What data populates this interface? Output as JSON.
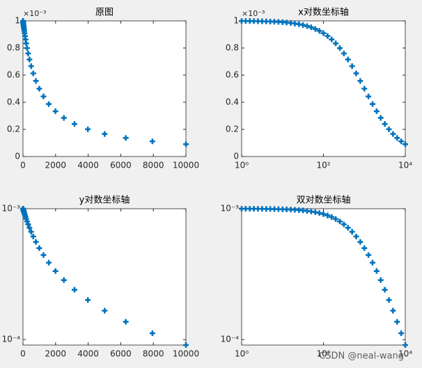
{
  "chart_data": [
    {
      "type": "scatter",
      "title": "原图",
      "exponent_label": "×10⁻³",
      "color": "#0072bd",
      "xscale": "linear",
      "yscale": "linear",
      "x": [
        1,
        1.259,
        1.585,
        1.995,
        2.512,
        3.162,
        3.981,
        5.012,
        6.31,
        7.943,
        10,
        12.59,
        15.85,
        19.95,
        25.12,
        31.62,
        39.81,
        50.12,
        63.1,
        79.43,
        100,
        125.9,
        158.5,
        199.5,
        251.2,
        316.2,
        398.1,
        501.2,
        631,
        794.3,
        1000,
        1259,
        1585,
        1995,
        2512,
        3162,
        3981,
        5012,
        6310,
        7943,
        10000
      ],
      "values": [
        0.000999001,
        0.000998743,
        0.000998417,
        0.000998009,
        0.000997494,
        0.000996848,
        0.000996035,
        0.000995013,
        0.00099373,
        0.000992119,
        0.000990099,
        0.000987566,
        0.000984397,
        0.00098044,
        0.000975495,
        0.000969349,
        0.000961714,
        0.000952272,
        0.000940645,
        0.000926415,
        0.000909091,
        0.000888178,
        0.000863185,
        0.000833681,
        0.000799233,
        0.000759762,
        0.000715257,
        0.000666134,
        0.000613121,
        0.000557321,
        0.0005,
        0.000442674,
        0.000386847,
        0.00033389,
        0.000284738,
        0.000240269,
        0.000200763,
        0.000166334,
        0.000136799,
        0.000111819,
        9.0909e-05
      ],
      "xlim": [
        0,
        10000
      ],
      "xticks": [
        0,
        2000,
        4000,
        6000,
        8000,
        10000
      ],
      "ylim": [
        0,
        0.001
      ],
      "yticks": [
        0,
        {
          "value": 0.0002,
          "label": "0.2"
        },
        {
          "value": 0.0004,
          "label": "0.4"
        },
        {
          "value": 0.0006,
          "label": "0.6"
        },
        {
          "value": 0.0008,
          "label": "0.8"
        },
        {
          "value": 0.001,
          "label": "1"
        }
      ]
    },
    {
      "type": "scatter",
      "title": "x对数坐标轴",
      "exponent_label": "×10⁻³",
      "color": "#0072bd",
      "xscale": "log",
      "yscale": "linear",
      "x": [
        1,
        1.259,
        1.585,
        1.995,
        2.512,
        3.162,
        3.981,
        5.012,
        6.31,
        7.943,
        10,
        12.59,
        15.85,
        19.95,
        25.12,
        31.62,
        39.81,
        50.12,
        63.1,
        79.43,
        100,
        125.9,
        158.5,
        199.5,
        251.2,
        316.2,
        398.1,
        501.2,
        631,
        794.3,
        1000,
        1259,
        1585,
        1995,
        2512,
        3162,
        3981,
        5012,
        6310,
        7943,
        10000
      ],
      "values": [
        0.000999001,
        0.000998743,
        0.000998417,
        0.000998009,
        0.000997494,
        0.000996848,
        0.000996035,
        0.000995013,
        0.00099373,
        0.000992119,
        0.000990099,
        0.000987566,
        0.000984397,
        0.00098044,
        0.000975495,
        0.000969349,
        0.000961714,
        0.000952272,
        0.000940645,
        0.000926415,
        0.000909091,
        0.000888178,
        0.000863185,
        0.000833681,
        0.000799233,
        0.000759762,
        0.000715257,
        0.000666134,
        0.000613121,
        0.000557321,
        0.0005,
        0.000442674,
        0.000386847,
        0.00033389,
        0.000284738,
        0.000240269,
        0.000200763,
        0.000166334,
        0.000136799,
        0.000111819,
        9.0909e-05
      ],
      "xlim": [
        1,
        10000
      ],
      "xticks": [
        {
          "value": 1,
          "label": "10⁰"
        },
        {
          "value": 100,
          "label": "10²"
        },
        {
          "value": 10000,
          "label": "10⁴"
        }
      ],
      "ylim": [
        0,
        0.001
      ],
      "yticks": [
        0,
        {
          "value": 0.0002,
          "label": "0.2"
        },
        {
          "value": 0.0004,
          "label": "0.4"
        },
        {
          "value": 0.0006,
          "label": "0.6"
        },
        {
          "value": 0.0008,
          "label": "0.8"
        },
        {
          "value": 0.001,
          "label": "1"
        }
      ]
    },
    {
      "type": "scatter",
      "title": "y对数坐标轴",
      "color": "#0072bd",
      "xscale": "linear",
      "yscale": "log",
      "x": [
        1,
        1.259,
        1.585,
        1.995,
        2.512,
        3.162,
        3.981,
        5.012,
        6.31,
        7.943,
        10,
        12.59,
        15.85,
        19.95,
        25.12,
        31.62,
        39.81,
        50.12,
        63.1,
        79.43,
        100,
        125.9,
        158.5,
        199.5,
        251.2,
        316.2,
        398.1,
        501.2,
        631,
        794.3,
        1000,
        1259,
        1585,
        1995,
        2512,
        3162,
        3981,
        5012,
        6310,
        7943,
        10000
      ],
      "values": [
        0.000999001,
        0.000998743,
        0.000998417,
        0.000998009,
        0.000997494,
        0.000996848,
        0.000996035,
        0.000995013,
        0.00099373,
        0.000992119,
        0.000990099,
        0.000987566,
        0.000984397,
        0.00098044,
        0.000975495,
        0.000969349,
        0.000961714,
        0.000952272,
        0.000940645,
        0.000926415,
        0.000909091,
        0.000888178,
        0.000863185,
        0.000833681,
        0.000799233,
        0.000759762,
        0.000715257,
        0.000666134,
        0.000613121,
        0.000557321,
        0.0005,
        0.000442674,
        0.000386847,
        0.00033389,
        0.000284738,
        0.000240269,
        0.000200763,
        0.000166334,
        0.000136799,
        0.000111819,
        9.0909e-05
      ],
      "xlim": [
        0,
        10000
      ],
      "xticks": [
        0,
        2000,
        4000,
        6000,
        8000,
        10000
      ],
      "ylim": [
        9.0909e-05,
        0.001
      ],
      "yticks": [
        {
          "value": 0.0001,
          "label": "10⁻⁴"
        },
        {
          "value": 0.001,
          "label": "10⁻³"
        }
      ]
    },
    {
      "type": "scatter",
      "title": "双对数坐标轴",
      "color": "#0072bd",
      "xscale": "log",
      "yscale": "log",
      "x": [
        1,
        1.259,
        1.585,
        1.995,
        2.512,
        3.162,
        3.981,
        5.012,
        6.31,
        7.943,
        10,
        12.59,
        15.85,
        19.95,
        25.12,
        31.62,
        39.81,
        50.12,
        63.1,
        79.43,
        100,
        125.9,
        158.5,
        199.5,
        251.2,
        316.2,
        398.1,
        501.2,
        631,
        794.3,
        1000,
        1259,
        1585,
        1995,
        2512,
        3162,
        3981,
        5012,
        6310,
        7943,
        10000
      ],
      "values": [
        0.000999001,
        0.000998743,
        0.000998417,
        0.000998009,
        0.000997494,
        0.000996848,
        0.000996035,
        0.000995013,
        0.00099373,
        0.000992119,
        0.000990099,
        0.000987566,
        0.000984397,
        0.00098044,
        0.000975495,
        0.000969349,
        0.000961714,
        0.000952272,
        0.000940645,
        0.000926415,
        0.000909091,
        0.000888178,
        0.000863185,
        0.000833681,
        0.000799233,
        0.000759762,
        0.000715257,
        0.000666134,
        0.000613121,
        0.000557321,
        0.0005,
        0.000442674,
        0.000386847,
        0.00033389,
        0.000284738,
        0.000240269,
        0.000200763,
        0.000166334,
        0.000136799,
        0.000111819,
        9.0909e-05
      ],
      "xlim": [
        1,
        10000
      ],
      "xticks": [
        {
          "value": 1,
          "label": "10⁰"
        },
        {
          "value": 100,
          "label": "10²"
        },
        {
          "value": 10000,
          "label": "10⁴"
        }
      ],
      "ylim": [
        9.0909e-05,
        0.001
      ],
      "yticks": [
        {
          "value": 0.0001,
          "label": "10⁻⁴"
        },
        {
          "value": 0.001,
          "label": "10⁻³"
        }
      ]
    }
  ],
  "watermark": "CSDN @neal-wang"
}
